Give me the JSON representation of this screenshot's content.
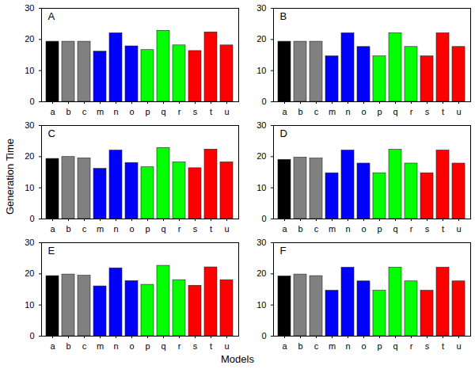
{
  "chart_data": [
    {
      "type": "bar",
      "title": "A",
      "categories": [
        "a",
        "b",
        "c",
        "m",
        "n",
        "o",
        "p",
        "q",
        "r",
        "s",
        "t",
        "u"
      ],
      "values": [
        19.3,
        19.3,
        19.3,
        16.1,
        22.0,
        17.8,
        16.6,
        22.8,
        18.1,
        16.3,
        22.3,
        18.1
      ],
      "colors": [
        "#000000",
        "#808080",
        "#808080",
        "#0000ff",
        "#0000ff",
        "#0000ff",
        "#00ff00",
        "#00ff00",
        "#00ff00",
        "#ff0000",
        "#ff0000",
        "#ff0000"
      ],
      "ylim": [
        0,
        30
      ],
      "yticks": [
        0,
        10,
        20,
        30
      ]
    },
    {
      "type": "bar",
      "title": "B",
      "categories": [
        "a",
        "b",
        "c",
        "m",
        "n",
        "o",
        "p",
        "q",
        "r",
        "s",
        "t",
        "u"
      ],
      "values": [
        19.3,
        19.3,
        19.3,
        14.6,
        22.0,
        17.6,
        14.6,
        22.0,
        17.6,
        14.6,
        22.0,
        17.6
      ],
      "colors": [
        "#000000",
        "#808080",
        "#808080",
        "#0000ff",
        "#0000ff",
        "#0000ff",
        "#00ff00",
        "#00ff00",
        "#00ff00",
        "#ff0000",
        "#ff0000",
        "#ff0000"
      ],
      "ylim": [
        0,
        30
      ],
      "yticks": [
        0,
        10,
        20,
        30
      ]
    },
    {
      "type": "bar",
      "title": "C",
      "categories": [
        "a",
        "b",
        "c",
        "m",
        "n",
        "o",
        "p",
        "q",
        "r",
        "s",
        "t",
        "u"
      ],
      "values": [
        19.3,
        19.9,
        19.5,
        16.1,
        22.0,
        18.0,
        16.6,
        22.8,
        18.2,
        16.3,
        22.3,
        18.2
      ],
      "colors": [
        "#000000",
        "#808080",
        "#808080",
        "#0000ff",
        "#0000ff",
        "#0000ff",
        "#00ff00",
        "#00ff00",
        "#00ff00",
        "#ff0000",
        "#ff0000",
        "#ff0000"
      ],
      "ylim": [
        0,
        30
      ],
      "yticks": [
        0,
        10,
        20,
        30
      ]
    },
    {
      "type": "bar",
      "title": "D",
      "categories": [
        "a",
        "b",
        "c",
        "m",
        "n",
        "o",
        "p",
        "q",
        "r",
        "s",
        "t",
        "u"
      ],
      "values": [
        19.0,
        19.7,
        19.4,
        14.7,
        22.0,
        17.8,
        14.7,
        22.2,
        17.8,
        14.7,
        22.0,
        17.8
      ],
      "colors": [
        "#000000",
        "#808080",
        "#808080",
        "#0000ff",
        "#0000ff",
        "#0000ff",
        "#00ff00",
        "#00ff00",
        "#00ff00",
        "#ff0000",
        "#ff0000",
        "#ff0000"
      ],
      "ylim": [
        0,
        30
      ],
      "yticks": [
        0,
        10,
        20,
        30
      ]
    },
    {
      "type": "bar",
      "title": "E",
      "categories": [
        "a",
        "b",
        "c",
        "m",
        "n",
        "o",
        "p",
        "q",
        "r",
        "s",
        "t",
        "u"
      ],
      "values": [
        19.3,
        19.8,
        19.4,
        16.0,
        21.8,
        17.7,
        16.5,
        22.6,
        18.0,
        16.2,
        22.1,
        18.0
      ],
      "colors": [
        "#000000",
        "#808080",
        "#808080",
        "#0000ff",
        "#0000ff",
        "#0000ff",
        "#00ff00",
        "#00ff00",
        "#00ff00",
        "#ff0000",
        "#ff0000",
        "#ff0000"
      ],
      "ylim": [
        0,
        30
      ],
      "yticks": [
        0,
        10,
        20,
        30
      ]
    },
    {
      "type": "bar",
      "title": "F",
      "categories": [
        "a",
        "b",
        "c",
        "m",
        "n",
        "o",
        "p",
        "q",
        "r",
        "s",
        "t",
        "u"
      ],
      "values": [
        19.2,
        19.8,
        19.3,
        14.6,
        22.0,
        17.6,
        14.6,
        22.0,
        17.6,
        14.6,
        22.0,
        17.6
      ],
      "colors": [
        "#000000",
        "#808080",
        "#808080",
        "#0000ff",
        "#0000ff",
        "#0000ff",
        "#00ff00",
        "#00ff00",
        "#00ff00",
        "#ff0000",
        "#ff0000",
        "#ff0000"
      ],
      "ylim": [
        0,
        30
      ],
      "yticks": [
        0,
        10,
        20,
        30
      ]
    }
  ],
  "ylabel": "Generation Time",
  "xlabel": "Models"
}
